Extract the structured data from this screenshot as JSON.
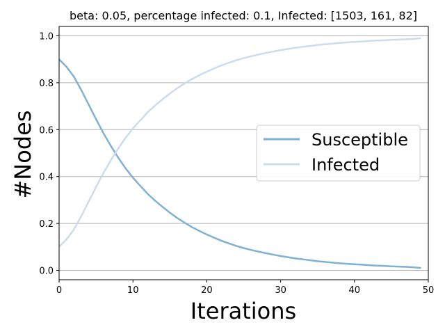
{
  "chart_data": {
    "type": "line",
    "title": "beta: 0.05, percentage infected: 0.1, Infected: [1503, 161, 82]",
    "xlabel": "Iterations",
    "ylabel": "#Nodes",
    "xlim": [
      0,
      50
    ],
    "ylim": [
      -0.04,
      1.04
    ],
    "xticks": [
      0,
      10,
      20,
      30,
      40,
      50
    ],
    "yticks": [
      0.0,
      0.2,
      0.4,
      0.6,
      0.8,
      1.0
    ],
    "ytick_labels": [
      "0.0",
      "0.2",
      "0.4",
      "0.6",
      "0.8",
      "1.0"
    ],
    "grid": "horizontal",
    "legend_position": "center-right",
    "x": [
      0,
      1,
      2,
      3,
      4,
      5,
      6,
      7,
      8,
      9,
      10,
      11,
      12,
      13,
      14,
      15,
      16,
      17,
      18,
      19,
      20,
      21,
      22,
      23,
      24,
      25,
      26,
      27,
      28,
      29,
      30,
      31,
      32,
      33,
      34,
      35,
      36,
      37,
      38,
      39,
      40,
      41,
      42,
      43,
      44,
      45,
      46,
      47,
      48,
      49
    ],
    "series": [
      {
        "name": "Susceptible",
        "color": "#7fb1d3",
        "values": [
          0.9,
          0.868,
          0.826,
          0.769,
          0.707,
          0.645,
          0.585,
          0.531,
          0.481,
          0.435,
          0.395,
          0.36,
          0.326,
          0.297,
          0.271,
          0.246,
          0.223,
          0.203,
          0.184,
          0.168,
          0.153,
          0.139,
          0.126,
          0.115,
          0.104,
          0.095,
          0.087,
          0.08,
          0.073,
          0.067,
          0.061,
          0.056,
          0.051,
          0.047,
          0.043,
          0.039,
          0.036,
          0.033,
          0.03,
          0.028,
          0.026,
          0.024,
          0.022,
          0.02,
          0.019,
          0.017,
          0.016,
          0.015,
          0.013,
          0.01
        ]
      },
      {
        "name": "Infected",
        "color": "#ccdcee",
        "values": [
          0.1,
          0.132,
          0.174,
          0.231,
          0.293,
          0.355,
          0.415,
          0.469,
          0.519,
          0.565,
          0.605,
          0.64,
          0.674,
          0.703,
          0.729,
          0.754,
          0.777,
          0.797,
          0.816,
          0.832,
          0.847,
          0.861,
          0.874,
          0.885,
          0.896,
          0.905,
          0.913,
          0.92,
          0.927,
          0.933,
          0.939,
          0.944,
          0.949,
          0.953,
          0.957,
          0.961,
          0.964,
          0.967,
          0.97,
          0.972,
          0.974,
          0.976,
          0.978,
          0.98,
          0.981,
          0.983,
          0.984,
          0.985,
          0.987,
          0.99
        ]
      }
    ]
  }
}
